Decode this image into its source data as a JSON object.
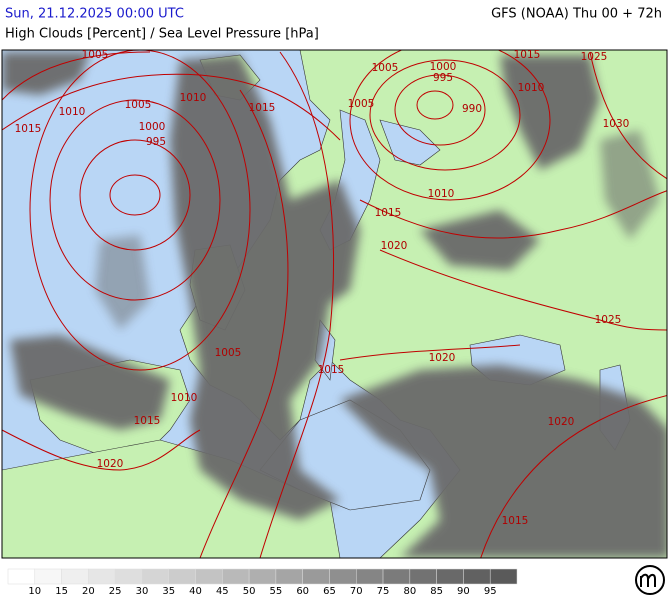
{
  "header": {
    "datetime": "Sun, 21.12.2025 00:00 UTC",
    "model": "GFS (NOAA) Thu 00 + 72h",
    "title": "High Clouds [Percent] / Sea Level Pressure [hPa]"
  },
  "map": {
    "isobar_labels": [
      "1005",
      "1010",
      "1015",
      "1005",
      "1010",
      "1015",
      "1000",
      "995",
      "1005",
      "1000",
      "995",
      "1005",
      "990",
      "1015",
      "1010",
      "1025",
      "1030",
      "1010",
      "1015",
      "1020",
      "1025",
      "1020",
      "1005",
      "1015",
      "1010",
      "1015",
      "1020",
      "1020",
      "1015"
    ]
  },
  "legend": {
    "levels": [
      10,
      15,
      20,
      25,
      30,
      35,
      40,
      45,
      50,
      55,
      60,
      65,
      70,
      75,
      80,
      85,
      90,
      95
    ],
    "colors": [
      "#ffffff",
      "#f7f7f7",
      "#efefef",
      "#e6e6e6",
      "#dedede",
      "#d5d5d5",
      "#cccccc",
      "#c3c3c3",
      "#b9b9b9",
      "#afafaf",
      "#a5a5a5",
      "#9a9a9a",
      "#8f8f8f",
      "#858585",
      "#7b7b7b",
      "#727272",
      "#696969",
      "#616161",
      "#5a5a5a"
    ]
  }
}
